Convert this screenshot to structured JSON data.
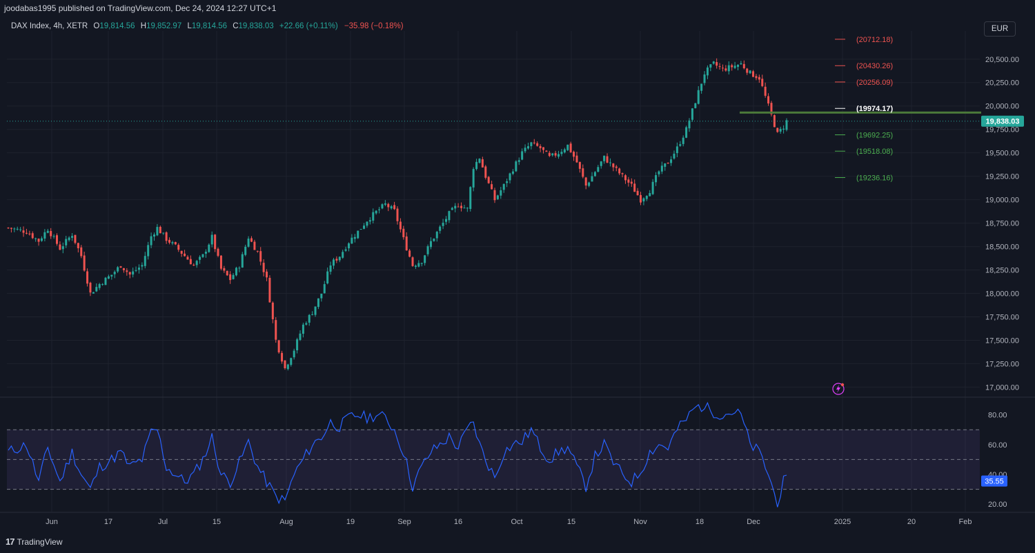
{
  "header": {
    "published_line": "joodabas1995 published on TradingView.com, Dec 24, 2024 12:27 UTC+1"
  },
  "legend": {
    "symbol": "DAX Index, 4h, XETR",
    "o_label": "O",
    "o_value": "19,814.56",
    "h_label": "H",
    "h_value": "19,852.97",
    "l_label": "L",
    "l_value": "19,814.56",
    "c_label": "C",
    "c_value": "19,838.03",
    "change": "+22.66 (+0.11%)",
    "change2": "−35.98 (−0.18%)"
  },
  "currency_button": "EUR",
  "footer": {
    "brand": "TradingView",
    "mark": "17"
  },
  "colors": {
    "background": "#131722",
    "grid": "#1e222d",
    "up": "#26a69a",
    "down": "#ef5350",
    "rsi_line": "#2962ff",
    "rsi_band": "#7e57c2",
    "resistance": "#ef5350",
    "support": "#4caf50"
  },
  "chart_data": [
    {
      "type": "candlestick",
      "title": "DAX Index, 4h, XETR",
      "ylim": [
        16900,
        20800
      ],
      "y_ticks": [
        17000,
        17250,
        17500,
        17750,
        18000,
        18250,
        18500,
        18750,
        19000,
        19250,
        19500,
        19750,
        20000,
        20250,
        20500
      ],
      "y_tick_labels": [
        "17,000.00",
        "17,250.00",
        "17,500.00",
        "17,750.00",
        "18,000.00",
        "18,250.00",
        "18,500.00",
        "18,750.00",
        "19,000.00",
        "19,250.00",
        "19,500.00",
        "19,750.00",
        "20,000.00",
        "20,250.00",
        "20,500.00"
      ],
      "x_ticks": [
        "Jun",
        "17",
        "Jul",
        "15",
        "Aug",
        "19",
        "Sep",
        "16",
        "Oct",
        "15",
        "Nov",
        "18",
        "Dec",
        "2025",
        "20",
        "Feb"
      ],
      "last_price": 19838.03,
      "last_price_label": "19,838.03",
      "close_path": [
        [
          0,
          18700
        ],
        [
          6,
          18660
        ],
        [
          10,
          18560
        ],
        [
          13,
          18690
        ],
        [
          17,
          18480
        ],
        [
          21,
          18630
        ],
        [
          24,
          18400
        ],
        [
          27,
          18000
        ],
        [
          30,
          18100
        ],
        [
          34,
          18200
        ],
        [
          37,
          18300
        ],
        [
          40,
          18200
        ],
        [
          44,
          18300
        ],
        [
          47,
          18610
        ],
        [
          49,
          18700
        ],
        [
          52,
          18580
        ],
        [
          55,
          18500
        ],
        [
          58,
          18400
        ],
        [
          61,
          18300
        ],
        [
          64,
          18400
        ],
        [
          67,
          18600
        ],
        [
          70,
          18260
        ],
        [
          73,
          18150
        ],
        [
          76,
          18300
        ],
        [
          79,
          18600
        ],
        [
          82,
          18440
        ],
        [
          85,
          18150
        ],
        [
          88,
          17500
        ],
        [
          91,
          17200
        ],
        [
          94,
          17400
        ],
        [
          97,
          17660
        ],
        [
          100,
          17800
        ],
        [
          103,
          18000
        ],
        [
          106,
          18310
        ],
        [
          109,
          18400
        ],
        [
          112,
          18550
        ],
        [
          115,
          18660
        ],
        [
          118,
          18780
        ],
        [
          121,
          18870
        ],
        [
          124,
          18950
        ],
        [
          127,
          18880
        ],
        [
          130,
          18580
        ],
        [
          133,
          18300
        ],
        [
          136,
          18350
        ],
        [
          139,
          18550
        ],
        [
          142,
          18700
        ],
        [
          145,
          18850
        ],
        [
          148,
          18950
        ],
        [
          151,
          18900
        ],
        [
          153,
          19350
        ],
        [
          155,
          19450
        ],
        [
          157,
          19250
        ],
        [
          160,
          19000
        ],
        [
          163,
          19150
        ],
        [
          166,
          19330
        ],
        [
          169,
          19500
        ],
        [
          172,
          19600
        ],
        [
          175,
          19550
        ],
        [
          178,
          19450
        ],
        [
          181,
          19500
        ],
        [
          184,
          19580
        ],
        [
          187,
          19400
        ],
        [
          190,
          19150
        ],
        [
          193,
          19300
        ],
        [
          196,
          19450
        ],
        [
          199,
          19350
        ],
        [
          202,
          19250
        ],
        [
          205,
          19150
        ],
        [
          208,
          19000
        ],
        [
          211,
          19100
        ],
        [
          214,
          19300
        ],
        [
          217,
          19400
        ],
        [
          220,
          19550
        ],
        [
          223,
          19750
        ],
        [
          226,
          20050
        ],
        [
          229,
          20350
        ],
        [
          232,
          20450
        ],
        [
          235,
          20390
        ],
        [
          238,
          20420
        ],
        [
          241,
          20450
        ],
        [
          244,
          20350
        ],
        [
          247,
          20300
        ],
        [
          250,
          20000
        ],
        [
          253,
          19700
        ],
        [
          255,
          19780
        ],
        [
          256,
          19838.03
        ]
      ],
      "levels": [
        {
          "label": "(20712.18)",
          "value": 20712.18,
          "type": "resistance"
        },
        {
          "label": "(20430.26)",
          "value": 20430.26,
          "type": "resistance"
        },
        {
          "label": "(20256.09)",
          "value": 20256.09,
          "type": "resistance"
        },
        {
          "label": "(19974.17)",
          "value": 19974.17,
          "type": "pivot"
        },
        {
          "label": "(19692.25)",
          "value": 19692.25,
          "type": "support"
        },
        {
          "label": "(19518.08)",
          "value": 19518.08,
          "type": "support"
        },
        {
          "label": "(19236.16)",
          "value": 19236.16,
          "type": "support"
        }
      ],
      "horizontal_line": {
        "value": 19930,
        "from_date": "Nov 28"
      }
    },
    {
      "type": "line",
      "title": "RSI",
      "ylim": [
        15,
        90
      ],
      "y_ticks": [
        20,
        40,
        60,
        80
      ],
      "y_tick_labels": [
        "20.00",
        "40.00",
        "60.00",
        "80.00"
      ],
      "band": [
        30,
        70
      ],
      "midline": 50,
      "last_value": 35.55,
      "last_value_label": "35.55",
      "path": [
        [
          0,
          55
        ],
        [
          6,
          60
        ],
        [
          10,
          35
        ],
        [
          13,
          58
        ],
        [
          17,
          35
        ],
        [
          21,
          55
        ],
        [
          24,
          40
        ],
        [
          27,
          30
        ],
        [
          30,
          45
        ],
        [
          34,
          50
        ],
        [
          37,
          55
        ],
        [
          40,
          45
        ],
        [
          44,
          50
        ],
        [
          47,
          68
        ],
        [
          49,
          70
        ],
        [
          52,
          45
        ],
        [
          55,
          40
        ],
        [
          58,
          35
        ],
        [
          61,
          40
        ],
        [
          64,
          50
        ],
        [
          67,
          65
        ],
        [
          70,
          40
        ],
        [
          73,
          35
        ],
        [
          76,
          48
        ],
        [
          79,
          62
        ],
        [
          82,
          45
        ],
        [
          85,
          35
        ],
        [
          88,
          25
        ],
        [
          91,
          22
        ],
        [
          94,
          40
        ],
        [
          97,
          50
        ],
        [
          100,
          60
        ],
        [
          103,
          65
        ],
        [
          106,
          75
        ],
        [
          109,
          72
        ],
        [
          112,
          78
        ],
        [
          115,
          80
        ],
        [
          118,
          78
        ],
        [
          121,
          80
        ],
        [
          124,
          78
        ],
        [
          127,
          70
        ],
        [
          130,
          55
        ],
        [
          133,
          32
        ],
        [
          136,
          45
        ],
        [
          139,
          55
        ],
        [
          142,
          60
        ],
        [
          145,
          65
        ],
        [
          148,
          58
        ],
        [
          151,
          70
        ],
        [
          153,
          75
        ],
        [
          155,
          60
        ],
        [
          157,
          50
        ],
        [
          160,
          38
        ],
        [
          163,
          55
        ],
        [
          166,
          60
        ],
        [
          169,
          62
        ],
        [
          172,
          70
        ],
        [
          175,
          58
        ],
        [
          178,
          50
        ],
        [
          181,
          55
        ],
        [
          184,
          58
        ],
        [
          187,
          45
        ],
        [
          190,
          32
        ],
        [
          193,
          52
        ],
        [
          196,
          60
        ],
        [
          199,
          48
        ],
        [
          202,
          40
        ],
        [
          205,
          35
        ],
        [
          208,
          42
        ],
        [
          211,
          55
        ],
        [
          214,
          60
        ],
        [
          217,
          58
        ],
        [
          220,
          70
        ],
        [
          223,
          77
        ],
        [
          226,
          85
        ],
        [
          229,
          86
        ],
        [
          232,
          82
        ],
        [
          235,
          80
        ],
        [
          238,
          82
        ],
        [
          241,
          80
        ],
        [
          244,
          60
        ],
        [
          247,
          55
        ],
        [
          250,
          40
        ],
        [
          253,
          20
        ],
        [
          255,
          35
        ],
        [
          256,
          35.55
        ]
      ]
    }
  ]
}
